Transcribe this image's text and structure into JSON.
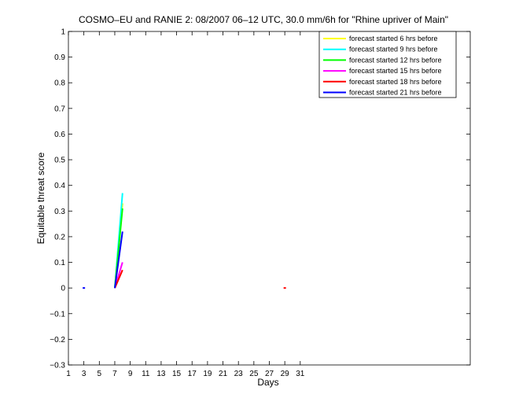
{
  "chart_data": {
    "type": "line",
    "title": "COSMO–EU and RANIE 2: 08/2007 06–12 UTC, 30.0 mm/6h for \"Rhine upriver of Main\"",
    "xlabel": "Days",
    "ylabel": "Equitable threat score",
    "xlim": [
      1,
      53
    ],
    "ylim": [
      -0.3,
      1
    ],
    "xticks": [
      "1",
      "3",
      "5",
      "7",
      "9",
      "11",
      "13",
      "15",
      "17",
      "19",
      "21",
      "23",
      "25",
      "27",
      "29",
      "31"
    ],
    "yticks": [
      "−0.3",
      "−0.2",
      "−0.1",
      "0",
      "0.1",
      "0.2",
      "0.3",
      "0.4",
      "0.5",
      "0.6",
      "0.7",
      "0.8",
      "0.9",
      "1"
    ],
    "grid": false,
    "legend_position": "top-right",
    "series": [
      {
        "name": "forecast started 6 hrs before",
        "color": "#ffff00",
        "points": [
          [
            7,
            0.0
          ],
          [
            8,
            0.33
          ]
        ]
      },
      {
        "name": "forecast started 9 hrs before",
        "color": "#00ffff",
        "points": [
          [
            7,
            0.0
          ],
          [
            8,
            0.37
          ]
        ]
      },
      {
        "name": "forecast started 12 hrs before",
        "color": "#00ff00",
        "points": [
          [
            7,
            0.0
          ],
          [
            8,
            0.31
          ]
        ]
      },
      {
        "name": "forecast started 15 hrs before",
        "color": "#ff00ff",
        "points": [
          [
            7,
            0.0
          ],
          [
            8,
            0.1
          ]
        ]
      },
      {
        "name": "forecast started 18 hrs before",
        "color": "#ff0000",
        "points": [
          [
            7,
            0.0
          ],
          [
            8,
            0.07
          ]
        ]
      },
      {
        "name": "forecast started 21 hrs before",
        "color": "#0000ff",
        "points": [
          [
            7,
            0.0
          ],
          [
            8,
            0.22
          ]
        ]
      }
    ],
    "isolated_points": [
      {
        "series": 5,
        "x": 3,
        "y": 0.0
      },
      {
        "series": 4,
        "x": 29,
        "y": 0.0
      }
    ]
  }
}
